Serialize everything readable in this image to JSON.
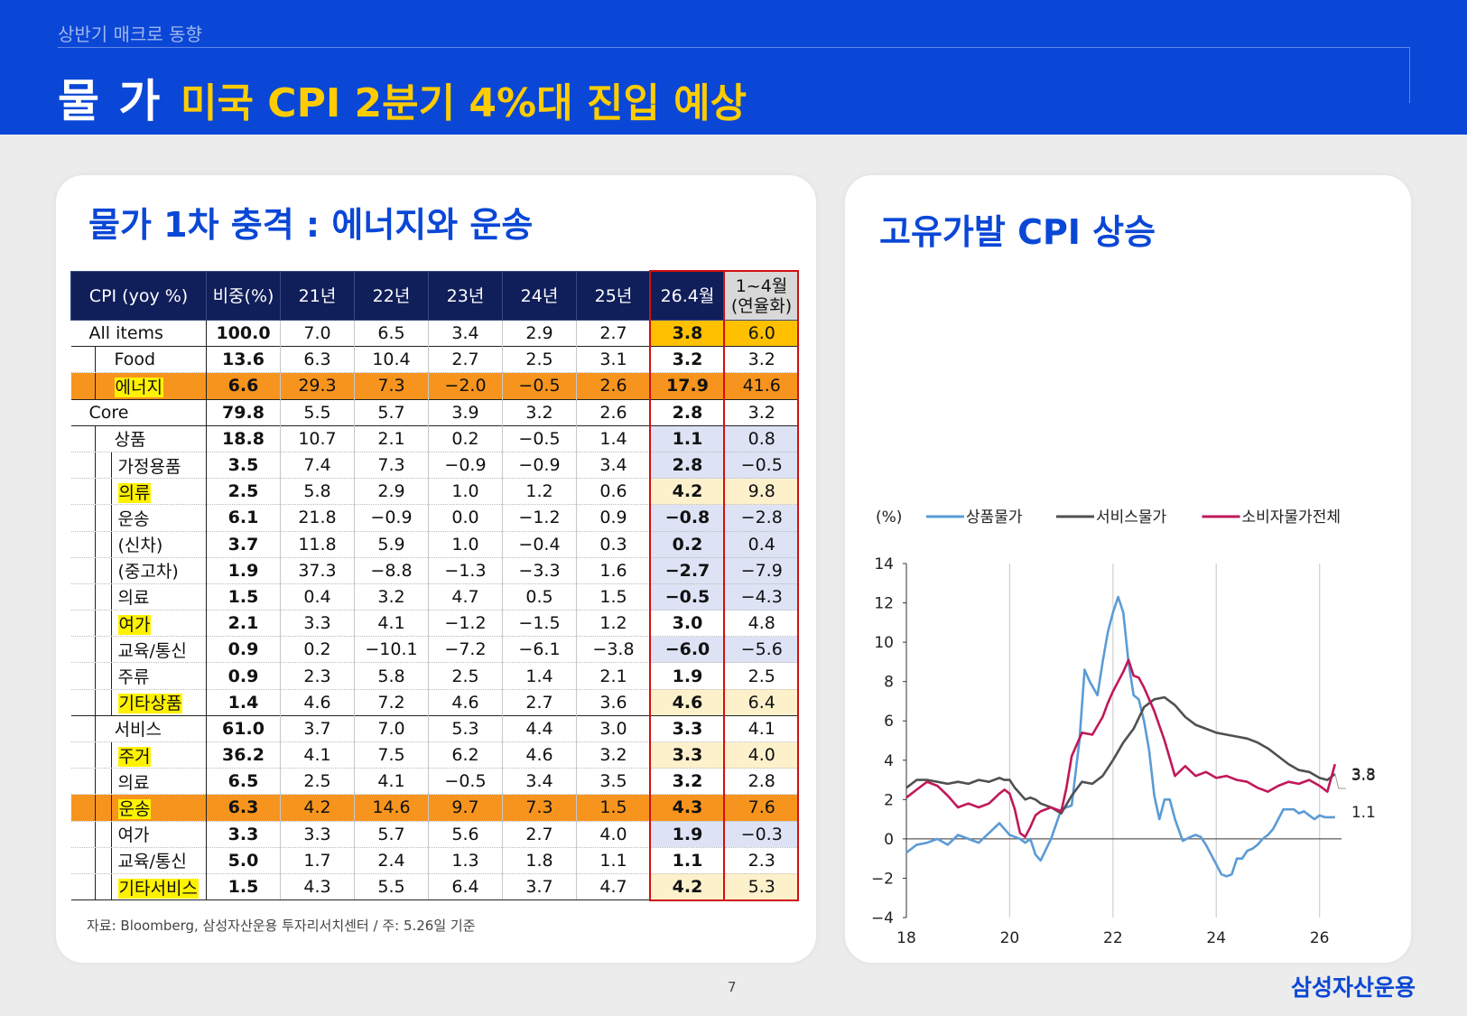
{
  "header": {
    "subtitle": "상반기 매크로 동향",
    "title": "물 가",
    "headline": "미국 CPI 2분기 4%대 진입 예상"
  },
  "left": {
    "title": "물가 1차 충격 : 에너지와 운송",
    "columns": [
      "CPI (yoy %)",
      "비중(%)",
      "21년",
      "22년",
      "23년",
      "24년",
      "25년",
      "26.4월",
      "1~4월\n(연율화)"
    ],
    "rows": [
      {
        "label": "All items",
        "values": [
          "100.0",
          "7.0",
          "6.5",
          "3.4",
          "2.9",
          "2.7",
          "3.8",
          "6.0"
        ]
      },
      {
        "label": "Food",
        "values": [
          "13.6",
          "6.3",
          "10.4",
          "2.7",
          "2.5",
          "3.1",
          "3.2",
          "3.2"
        ]
      },
      {
        "label": "에너지",
        "values": [
          "6.6",
          "29.3",
          "7.3",
          "-2.0",
          "-0.5",
          "2.6",
          "17.9",
          "41.6"
        ]
      },
      {
        "label": "Core",
        "values": [
          "79.8",
          "5.5",
          "5.7",
          "3.9",
          "3.2",
          "2.6",
          "2.8",
          "3.2"
        ]
      },
      {
        "label": "상품",
        "values": [
          "18.8",
          "10.7",
          "2.1",
          "0.2",
          "-0.5",
          "1.4",
          "1.1",
          "0.8"
        ]
      },
      {
        "label": "가정용품",
        "values": [
          "3.5",
          "7.4",
          "7.3",
          "-0.9",
          "-0.9",
          "3.4",
          "2.8",
          "-0.5"
        ]
      },
      {
        "label": "의류",
        "values": [
          "2.5",
          "5.8",
          "2.9",
          "1.0",
          "1.2",
          "0.6",
          "4.2",
          "9.8"
        ]
      },
      {
        "label": "운송",
        "values": [
          "6.1",
          "21.8",
          "-0.9",
          "0.0",
          "-1.2",
          "0.9",
          "-0.8",
          "-2.8"
        ]
      },
      {
        "label": "(신차)",
        "values": [
          "3.7",
          "11.8",
          "5.9",
          "1.0",
          "-0.4",
          "0.3",
          "0.2",
          "0.4"
        ]
      },
      {
        "label": "(중고차)",
        "values": [
          "1.9",
          "37.3",
          "-8.8",
          "-1.3",
          "-3.3",
          "1.6",
          "-2.7",
          "-7.9"
        ]
      },
      {
        "label": "의료",
        "values": [
          "1.5",
          "0.4",
          "3.2",
          "4.7",
          "0.5",
          "1.5",
          "-0.5",
          "-4.3"
        ]
      },
      {
        "label": "여가",
        "values": [
          "2.1",
          "3.3",
          "4.1",
          "-1.2",
          "-1.5",
          "1.2",
          "3.0",
          "4.8"
        ]
      },
      {
        "label": "교육/통신",
        "values": [
          "0.9",
          "0.2",
          "-10.1",
          "-7.2",
          "-6.1",
          "-3.8",
          "-6.0",
          "-5.6"
        ]
      },
      {
        "label": "주류",
        "values": [
          "0.9",
          "2.3",
          "5.8",
          "2.5",
          "1.4",
          "2.1",
          "1.9",
          "2.5"
        ]
      },
      {
        "label": "기타상품",
        "values": [
          "1.4",
          "4.6",
          "7.2",
          "4.6",
          "2.7",
          "3.6",
          "4.6",
          "6.4"
        ]
      },
      {
        "label": "서비스",
        "values": [
          "61.0",
          "3.7",
          "7.0",
          "5.3",
          "4.4",
          "3.0",
          "3.3",
          "4.1"
        ]
      },
      {
        "label": "주거",
        "values": [
          "36.2",
          "4.1",
          "7.5",
          "6.2",
          "4.6",
          "3.2",
          "3.3",
          "4.0"
        ]
      },
      {
        "label": "의료",
        "values": [
          "6.5",
          "2.5",
          "4.1",
          "-0.5",
          "3.4",
          "3.5",
          "3.2",
          "2.8"
        ]
      },
      {
        "label": "운송",
        "values": [
          "6.3",
          "4.2",
          "14.6",
          "9.7",
          "7.3",
          "1.5",
          "4.3",
          "7.6"
        ]
      },
      {
        "label": "여가",
        "values": [
          "3.3",
          "3.3",
          "5.7",
          "5.6",
          "2.7",
          "4.0",
          "1.9",
          "-0.3"
        ]
      },
      {
        "label": "교육/통신",
        "values": [
          "5.0",
          "1.7",
          "2.4",
          "1.3",
          "1.8",
          "1.1",
          "1.1",
          "2.3"
        ]
      },
      {
        "label": "기타서비스",
        "values": [
          "1.5",
          "4.3",
          "5.5",
          "6.4",
          "3.7",
          "4.7",
          "4.2",
          "5.3"
        ]
      }
    ],
    "source": "자료: Bloomberg, 삼성자산운용 투자리서치센터 / 주: 5.26일 기준"
  },
  "colors": {
    "brand_blue": "#0a47d6",
    "highlight_yellow": "#fff200",
    "orange": "#f7941d",
    "gold": "#ffc000",
    "cell_blue": "#dde3f5",
    "cell_cream": "#fdf1cc",
    "goods_line": "#5b9bd5",
    "services_line": "#505050",
    "cpi_line": "#c0185a"
  },
  "right": {
    "title": "고유가발 CPI 상승"
  },
  "chart_data": {
    "type": "line",
    "title": "",
    "ylabel": "(%)",
    "xlabel": "",
    "xlim": [
      18,
      26.6
    ],
    "ylim": [
      -4,
      14
    ],
    "xticks": [
      "18",
      "20",
      "22",
      "24",
      "26"
    ],
    "yticks": [
      "14",
      "12",
      "10",
      "8",
      "6",
      "4",
      "2",
      "0",
      "−2",
      "−4"
    ],
    "grid": "vertical at 20, 22, 24, 26",
    "legend": "top",
    "series": [
      {
        "name": "상품물가",
        "color": "#5b9bd5",
        "end_label": "1.1",
        "x": [
          18.0,
          18.2,
          18.4,
          18.6,
          18.8,
          19.0,
          19.2,
          19.4,
          19.6,
          19.8,
          19.9,
          20.0,
          20.1,
          20.2,
          20.3,
          20.4,
          20.5,
          20.6,
          20.8,
          21.0,
          21.1,
          21.2,
          21.35,
          21.45,
          21.55,
          21.7,
          21.8,
          21.9,
          22.0,
          22.1,
          22.2,
          22.3,
          22.4,
          22.5,
          22.6,
          22.7,
          22.8,
          22.9,
          23.0,
          23.1,
          23.2,
          23.35,
          23.5,
          23.6,
          23.7,
          23.8,
          24.0,
          24.1,
          24.2,
          24.3,
          24.4,
          24.5,
          24.6,
          24.7,
          24.8,
          24.9,
          25.0,
          25.1,
          25.2,
          25.3,
          25.4,
          25.5,
          25.6,
          25.7,
          25.8,
          25.9,
          26.0,
          26.1,
          26.2,
          26.3
        ],
        "y": [
          -0.7,
          -0.3,
          -0.2,
          0.0,
          -0.3,
          0.2,
          0.0,
          -0.2,
          0.3,
          0.8,
          0.5,
          0.2,
          0.1,
          0.0,
          -0.2,
          0.0,
          -0.8,
          -1.1,
          0.0,
          1.5,
          1.6,
          1.7,
          5.0,
          8.6,
          8.0,
          7.3,
          9.0,
          10.5,
          11.5,
          12.3,
          11.5,
          9.0,
          7.3,
          7.1,
          6.0,
          4.5,
          2.2,
          1.0,
          2.0,
          2.0,
          1.0,
          -0.1,
          0.1,
          0.2,
          0.1,
          -0.3,
          -1.3,
          -1.8,
          -1.9,
          -1.8,
          -1.0,
          -1.0,
          -0.6,
          -0.5,
          -0.3,
          0.0,
          0.2,
          0.5,
          1.0,
          1.5,
          1.5,
          1.5,
          1.3,
          1.4,
          1.2,
          1.0,
          1.2,
          1.1,
          1.1,
          1.1
        ]
      },
      {
        "name": "서비스물가",
        "color": "#505050",
        "end_label": "3.3",
        "x": [
          18.0,
          18.2,
          18.4,
          18.6,
          18.8,
          19.0,
          19.2,
          19.4,
          19.6,
          19.8,
          19.9,
          20.0,
          20.1,
          20.2,
          20.3,
          20.4,
          20.5,
          20.6,
          20.8,
          21.0,
          21.2,
          21.4,
          21.6,
          21.8,
          22.0,
          22.2,
          22.4,
          22.6,
          22.8,
          23.0,
          23.2,
          23.4,
          23.6,
          23.8,
          24.0,
          24.2,
          24.4,
          24.6,
          24.8,
          25.0,
          25.2,
          25.4,
          25.6,
          25.8,
          26.0,
          26.15,
          26.3
        ],
        "y": [
          2.6,
          3.0,
          3.0,
          2.9,
          2.8,
          2.9,
          2.8,
          3.0,
          2.9,
          3.1,
          3.0,
          3.0,
          2.6,
          2.3,
          2.0,
          2.1,
          2.0,
          1.8,
          1.6,
          1.3,
          2.2,
          2.9,
          2.8,
          3.2,
          4.0,
          4.9,
          5.6,
          6.7,
          7.1,
          7.2,
          6.8,
          6.2,
          5.8,
          5.6,
          5.4,
          5.3,
          5.2,
          5.1,
          4.9,
          4.6,
          4.2,
          3.8,
          3.5,
          3.4,
          3.1,
          3.0,
          3.3
        ]
      },
      {
        "name": "소비자물가전체",
        "color": "#c0185a",
        "end_label": "3.8",
        "x": [
          18.0,
          18.2,
          18.4,
          18.6,
          18.8,
          19.0,
          19.2,
          19.4,
          19.6,
          19.8,
          19.9,
          20.0,
          20.1,
          20.2,
          20.3,
          20.4,
          20.5,
          20.6,
          20.8,
          21.0,
          21.1,
          21.2,
          21.4,
          21.6,
          21.8,
          21.9,
          22.0,
          22.2,
          22.3,
          22.4,
          22.5,
          22.6,
          22.8,
          23.0,
          23.2,
          23.4,
          23.6,
          23.8,
          24.0,
          24.2,
          24.4,
          24.6,
          24.8,
          25.0,
          25.2,
          25.4,
          25.6,
          25.8,
          26.0,
          26.15,
          26.3
        ],
        "y": [
          2.1,
          2.5,
          2.9,
          2.7,
          2.2,
          1.6,
          1.8,
          1.6,
          1.8,
          2.3,
          2.5,
          2.3,
          1.5,
          0.3,
          0.1,
          0.6,
          1.2,
          1.4,
          1.6,
          1.4,
          2.6,
          4.2,
          5.4,
          5.3,
          6.2,
          6.9,
          7.5,
          8.5,
          9.1,
          8.3,
          8.2,
          7.7,
          6.5,
          5.0,
          3.2,
          3.7,
          3.2,
          3.4,
          3.1,
          3.2,
          3.0,
          2.9,
          2.6,
          2.4,
          2.7,
          2.9,
          2.8,
          3.0,
          2.7,
          2.4,
          3.8
        ]
      }
    ]
  },
  "footer": {
    "page_number": "7",
    "logo": "삼성자산운용"
  }
}
